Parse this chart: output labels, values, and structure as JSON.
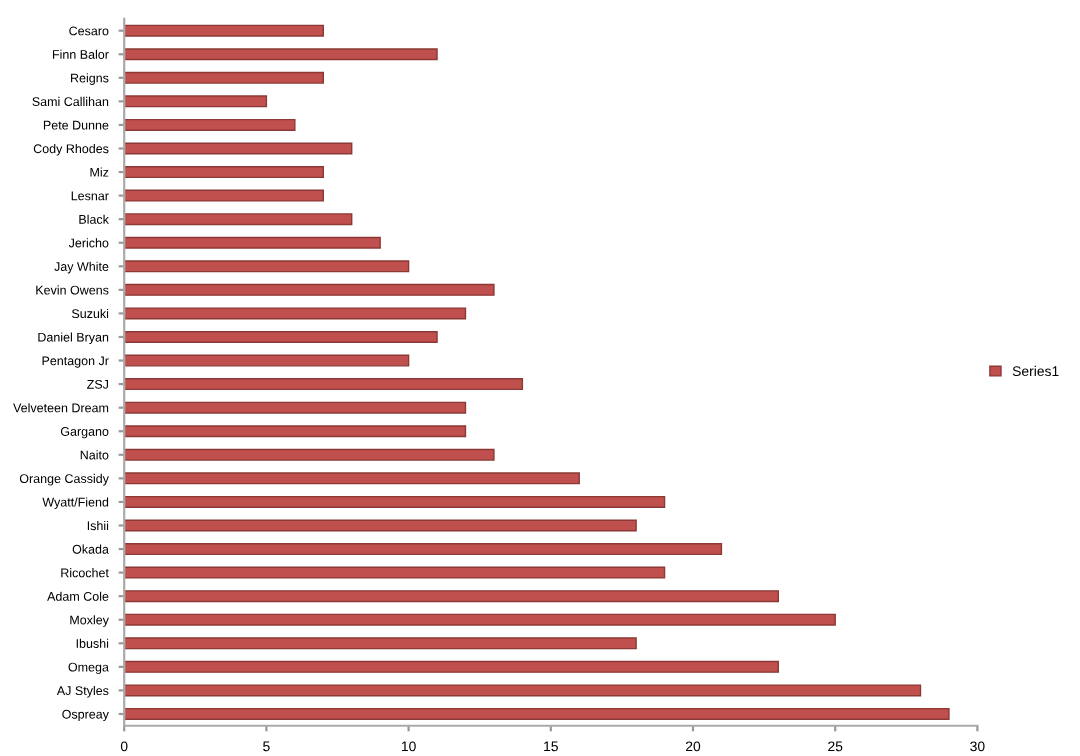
{
  "chart_data": {
    "type": "bar",
    "orientation": "horizontal",
    "categories": [
      "Cesaro",
      "Finn Balor",
      "Reigns",
      "Sami Callihan",
      "Pete Dunne",
      "Cody Rhodes",
      "Miz",
      "Lesnar",
      "Black",
      "Jericho",
      "Jay White",
      "Kevin Owens",
      "Suzuki",
      "Daniel Bryan",
      "Pentagon Jr",
      "ZSJ",
      "Velveteen Dream",
      "Gargano",
      "Naito",
      "Orange Cassidy",
      "Wyatt/Fiend",
      "Ishii",
      "Okada",
      "Ricochet",
      "Adam Cole",
      "Moxley",
      "Ibushi",
      "Omega",
      "AJ Styles",
      "Ospreay"
    ],
    "series": [
      {
        "name": "Series1",
        "color": "#c0504d",
        "values": [
          7,
          11,
          7,
          5,
          6,
          8,
          7,
          7,
          8,
          9,
          10,
          13,
          12,
          11,
          10,
          14,
          12,
          12,
          13,
          16,
          19,
          18,
          21,
          19,
          23,
          25,
          18,
          23,
          28,
          29
        ]
      }
    ],
    "xlim": [
      0,
      30
    ],
    "xticks": [
      0,
      5,
      10,
      15,
      20,
      25,
      30
    ],
    "grid": false,
    "legend": "right"
  }
}
